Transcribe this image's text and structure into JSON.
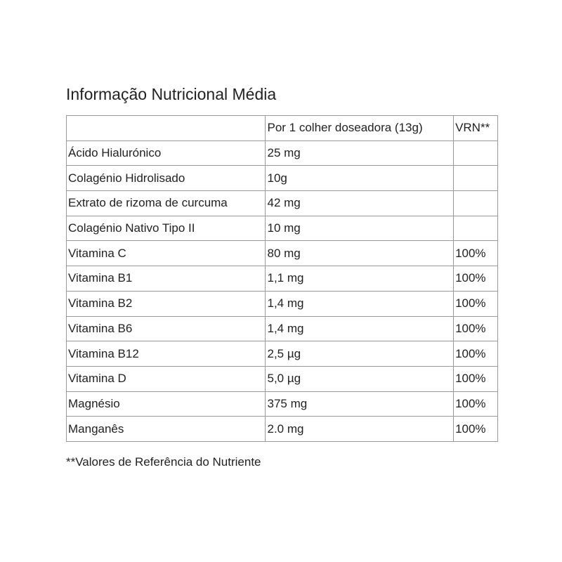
{
  "title": "Informação Nutricional Média",
  "table": {
    "header": [
      "",
      "Por 1 colher doseadora (13g)",
      "VRN**"
    ],
    "rows": [
      [
        "Ácido Hialurónico",
        "25 mg",
        ""
      ],
      [
        "Colagénio Hidrolisado",
        "10g",
        ""
      ],
      [
        "Extrato de rizoma de curcuma",
        "42 mg",
        ""
      ],
      [
        "Colagénio Nativo Tipo II",
        "10 mg",
        ""
      ],
      [
        "Vitamina C",
        "80 mg",
        "100%"
      ],
      [
        "Vitamina B1",
        "1,1 mg",
        "100%"
      ],
      [
        "Vitamina B2",
        "1,4 mg",
        "100%"
      ],
      [
        "Vitamina B6",
        "1,4 mg",
        "100%"
      ],
      [
        "Vitamina B12",
        "2,5 µg",
        "100%"
      ],
      [
        "Vitamina D",
        "5,0 µg",
        "100%"
      ],
      [
        "Magnésio",
        "375 mg",
        "100%"
      ],
      [
        "Manganês",
        "2.0 mg",
        "100%"
      ]
    ]
  },
  "footnote": "**Valores de Referência do Nutriente"
}
